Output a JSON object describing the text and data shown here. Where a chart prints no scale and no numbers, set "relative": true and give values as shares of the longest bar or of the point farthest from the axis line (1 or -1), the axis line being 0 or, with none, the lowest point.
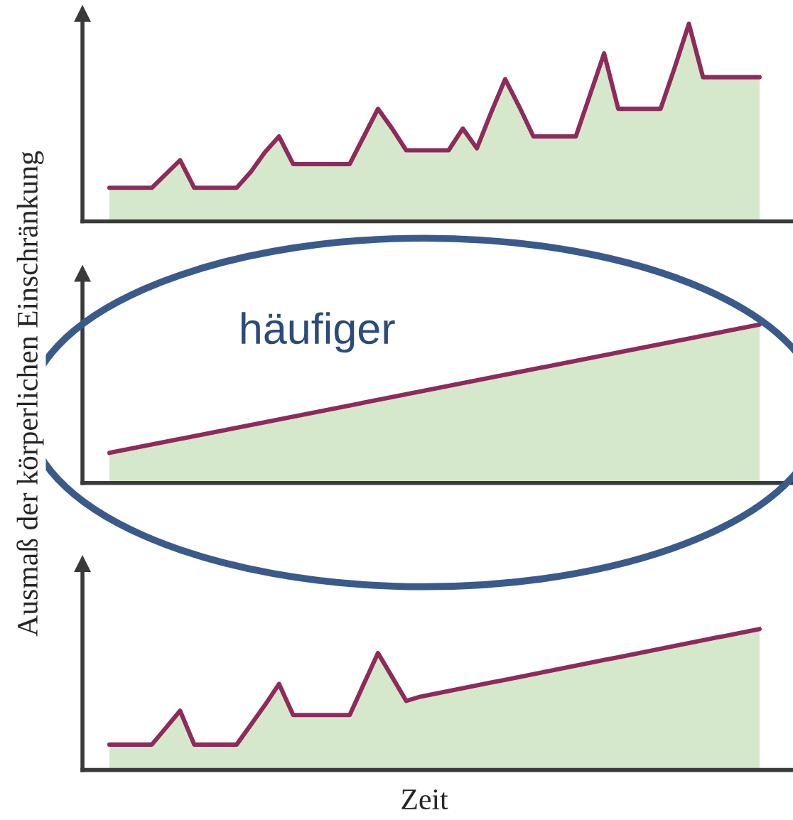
{
  "chart_data": [
    {
      "type": "area",
      "relative": true,
      "ylabel": "Ausmaß der körperlichen Einschränkung",
      "categories": [
        null,
        null,
        null,
        null,
        null,
        null,
        null,
        null,
        null,
        null,
        null,
        null,
        null,
        null,
        null,
        null,
        null,
        null,
        null,
        null,
        null,
        null,
        null,
        null,
        null,
        null,
        null,
        null,
        null,
        null,
        null,
        null,
        null,
        null,
        null,
        null,
        null,
        null,
        null,
        null,
        null,
        null,
        null,
        null,
        null,
        null,
        null
      ],
      "series": [
        {
          "color": "#8e2a5c",
          "values": [
            0.17,
            0.17,
            0.17,
            0.17,
            0.24,
            0.31,
            0.17,
            0.17,
            0.17,
            0.17,
            0.25,
            0.35,
            0.43,
            0.29,
            0.29,
            0.29,
            0.29,
            0.29,
            0.43,
            0.57,
            0.47,
            0.36,
            0.36,
            0.36,
            0.36,
            0.47,
            0.37,
            0.55,
            0.72,
            0.58,
            0.43,
            0.43,
            0.43,
            0.43,
            0.64,
            0.85,
            0.57,
            0.57,
            0.57,
            0.57,
            0.78,
            1,
            0.73,
            0.73,
            0.73,
            0.73,
            0.73
          ]
        }
      ]
    },
    {
      "type": "area",
      "relative": true,
      "annotations": [
        "häufiger"
      ],
      "categories": [
        null,
        null
      ],
      "series": [
        {
          "color": "#8e2a5c",
          "values": [
            0.19,
            1
          ]
        }
      ]
    },
    {
      "type": "area",
      "relative": true,
      "xlabel": "Zeit",
      "categories": [
        null,
        null,
        null,
        null,
        null,
        null,
        null,
        null,
        null,
        null,
        null,
        null,
        null,
        null,
        null,
        null,
        null,
        null,
        null,
        null,
        null,
        null,
        null,
        null,
        null,
        null,
        null,
        null,
        null,
        null,
        null,
        null,
        null,
        null,
        null,
        null,
        null,
        null,
        null,
        null,
        null,
        null,
        null,
        null,
        null,
        null,
        null
      ],
      "series": [
        {
          "color": "#8e2a5c",
          "values": [
            0.18,
            0.18,
            0.18,
            0.18,
            0.3,
            0.42,
            0.18,
            0.18,
            0.18,
            0.18,
            0.32,
            0.46,
            0.61,
            0.39,
            0.39,
            0.39,
            0.39,
            0.39,
            0.61,
            0.83,
            0.66,
            0.49,
            0.52,
            0.54,
            0.56,
            0.58,
            0.6,
            0.62,
            0.64,
            0.66,
            0.68,
            0.7,
            0.72,
            0.74,
            0.76,
            0.78,
            0.8,
            0.82,
            0.84,
            0.86,
            0.88,
            0.9,
            0.92,
            0.94,
            0.96,
            0.98,
            1.0
          ]
        }
      ]
    }
  ]
}
